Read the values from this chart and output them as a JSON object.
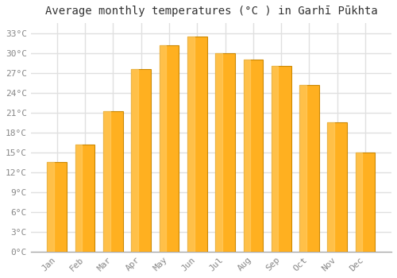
{
  "title": "Average monthly temperatures (°C ) in Garhī Pūkhta",
  "months": [
    "Jan",
    "Feb",
    "Mar",
    "Apr",
    "May",
    "Jun",
    "Jul",
    "Aug",
    "Sep",
    "Oct",
    "Nov",
    "Dec"
  ],
  "values": [
    13.5,
    16.2,
    21.2,
    27.5,
    31.2,
    32.5,
    30.0,
    29.0,
    28.0,
    25.2,
    19.5,
    15.0
  ],
  "bar_color_main": "#FFA500",
  "bar_color_light": "#FFD060",
  "bar_edge_color": "#CC8800",
  "background_color": "#FFFFFF",
  "plot_bg_color": "#FFFFFF",
  "grid_color": "#E0E0E0",
  "yticks": [
    0,
    3,
    6,
    9,
    12,
    15,
    18,
    21,
    24,
    27,
    30,
    33
  ],
  "ylim": [
    0,
    34.5
  ],
  "title_fontsize": 10,
  "tick_fontsize": 8,
  "tick_color": "#888888"
}
